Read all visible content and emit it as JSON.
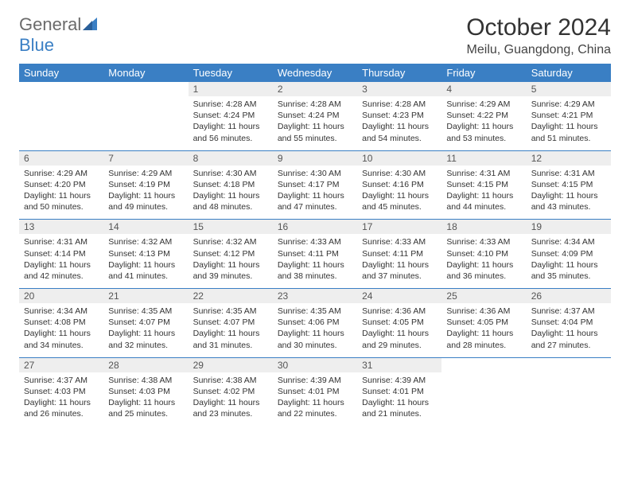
{
  "brand": {
    "part1": "General",
    "part2": "Blue"
  },
  "title": "October 2024",
  "location": "Meilu, Guangdong, China",
  "colors": {
    "header_bg": "#3a7fc4",
    "header_text": "#ffffff",
    "daynum_bg": "#eeeeee",
    "border": "#3a7fc4",
    "body_text": "#333333",
    "logo_gray": "#6b6b6b",
    "background": "#ffffff"
  },
  "typography": {
    "title_fontsize": 30,
    "location_fontsize": 16,
    "header_fontsize": 13,
    "daynum_fontsize": 12,
    "details_fontsize": 10.5
  },
  "layout": {
    "columns": 7,
    "rows": 5
  },
  "weekdays": [
    "Sunday",
    "Monday",
    "Tuesday",
    "Wednesday",
    "Thursday",
    "Friday",
    "Saturday"
  ],
  "weeks": [
    [
      {
        "day": "",
        "sunrise": "",
        "sunset": "",
        "daylight": ""
      },
      {
        "day": "",
        "sunrise": "",
        "sunset": "",
        "daylight": ""
      },
      {
        "day": "1",
        "sunrise": "Sunrise: 4:28 AM",
        "sunset": "Sunset: 4:24 PM",
        "daylight": "Daylight: 11 hours and 56 minutes."
      },
      {
        "day": "2",
        "sunrise": "Sunrise: 4:28 AM",
        "sunset": "Sunset: 4:24 PM",
        "daylight": "Daylight: 11 hours and 55 minutes."
      },
      {
        "day": "3",
        "sunrise": "Sunrise: 4:28 AM",
        "sunset": "Sunset: 4:23 PM",
        "daylight": "Daylight: 11 hours and 54 minutes."
      },
      {
        "day": "4",
        "sunrise": "Sunrise: 4:29 AM",
        "sunset": "Sunset: 4:22 PM",
        "daylight": "Daylight: 11 hours and 53 minutes."
      },
      {
        "day": "5",
        "sunrise": "Sunrise: 4:29 AM",
        "sunset": "Sunset: 4:21 PM",
        "daylight": "Daylight: 11 hours and 51 minutes."
      }
    ],
    [
      {
        "day": "6",
        "sunrise": "Sunrise: 4:29 AM",
        "sunset": "Sunset: 4:20 PM",
        "daylight": "Daylight: 11 hours and 50 minutes."
      },
      {
        "day": "7",
        "sunrise": "Sunrise: 4:29 AM",
        "sunset": "Sunset: 4:19 PM",
        "daylight": "Daylight: 11 hours and 49 minutes."
      },
      {
        "day": "8",
        "sunrise": "Sunrise: 4:30 AM",
        "sunset": "Sunset: 4:18 PM",
        "daylight": "Daylight: 11 hours and 48 minutes."
      },
      {
        "day": "9",
        "sunrise": "Sunrise: 4:30 AM",
        "sunset": "Sunset: 4:17 PM",
        "daylight": "Daylight: 11 hours and 47 minutes."
      },
      {
        "day": "10",
        "sunrise": "Sunrise: 4:30 AM",
        "sunset": "Sunset: 4:16 PM",
        "daylight": "Daylight: 11 hours and 45 minutes."
      },
      {
        "day": "11",
        "sunrise": "Sunrise: 4:31 AM",
        "sunset": "Sunset: 4:15 PM",
        "daylight": "Daylight: 11 hours and 44 minutes."
      },
      {
        "day": "12",
        "sunrise": "Sunrise: 4:31 AM",
        "sunset": "Sunset: 4:15 PM",
        "daylight": "Daylight: 11 hours and 43 minutes."
      }
    ],
    [
      {
        "day": "13",
        "sunrise": "Sunrise: 4:31 AM",
        "sunset": "Sunset: 4:14 PM",
        "daylight": "Daylight: 11 hours and 42 minutes."
      },
      {
        "day": "14",
        "sunrise": "Sunrise: 4:32 AM",
        "sunset": "Sunset: 4:13 PM",
        "daylight": "Daylight: 11 hours and 41 minutes."
      },
      {
        "day": "15",
        "sunrise": "Sunrise: 4:32 AM",
        "sunset": "Sunset: 4:12 PM",
        "daylight": "Daylight: 11 hours and 39 minutes."
      },
      {
        "day": "16",
        "sunrise": "Sunrise: 4:33 AM",
        "sunset": "Sunset: 4:11 PM",
        "daylight": "Daylight: 11 hours and 38 minutes."
      },
      {
        "day": "17",
        "sunrise": "Sunrise: 4:33 AM",
        "sunset": "Sunset: 4:11 PM",
        "daylight": "Daylight: 11 hours and 37 minutes."
      },
      {
        "day": "18",
        "sunrise": "Sunrise: 4:33 AM",
        "sunset": "Sunset: 4:10 PM",
        "daylight": "Daylight: 11 hours and 36 minutes."
      },
      {
        "day": "19",
        "sunrise": "Sunrise: 4:34 AM",
        "sunset": "Sunset: 4:09 PM",
        "daylight": "Daylight: 11 hours and 35 minutes."
      }
    ],
    [
      {
        "day": "20",
        "sunrise": "Sunrise: 4:34 AM",
        "sunset": "Sunset: 4:08 PM",
        "daylight": "Daylight: 11 hours and 34 minutes."
      },
      {
        "day": "21",
        "sunrise": "Sunrise: 4:35 AM",
        "sunset": "Sunset: 4:07 PM",
        "daylight": "Daylight: 11 hours and 32 minutes."
      },
      {
        "day": "22",
        "sunrise": "Sunrise: 4:35 AM",
        "sunset": "Sunset: 4:07 PM",
        "daylight": "Daylight: 11 hours and 31 minutes."
      },
      {
        "day": "23",
        "sunrise": "Sunrise: 4:35 AM",
        "sunset": "Sunset: 4:06 PM",
        "daylight": "Daylight: 11 hours and 30 minutes."
      },
      {
        "day": "24",
        "sunrise": "Sunrise: 4:36 AM",
        "sunset": "Sunset: 4:05 PM",
        "daylight": "Daylight: 11 hours and 29 minutes."
      },
      {
        "day": "25",
        "sunrise": "Sunrise: 4:36 AM",
        "sunset": "Sunset: 4:05 PM",
        "daylight": "Daylight: 11 hours and 28 minutes."
      },
      {
        "day": "26",
        "sunrise": "Sunrise: 4:37 AM",
        "sunset": "Sunset: 4:04 PM",
        "daylight": "Daylight: 11 hours and 27 minutes."
      }
    ],
    [
      {
        "day": "27",
        "sunrise": "Sunrise: 4:37 AM",
        "sunset": "Sunset: 4:03 PM",
        "daylight": "Daylight: 11 hours and 26 minutes."
      },
      {
        "day": "28",
        "sunrise": "Sunrise: 4:38 AM",
        "sunset": "Sunset: 4:03 PM",
        "daylight": "Daylight: 11 hours and 25 minutes."
      },
      {
        "day": "29",
        "sunrise": "Sunrise: 4:38 AM",
        "sunset": "Sunset: 4:02 PM",
        "daylight": "Daylight: 11 hours and 23 minutes."
      },
      {
        "day": "30",
        "sunrise": "Sunrise: 4:39 AM",
        "sunset": "Sunset: 4:01 PM",
        "daylight": "Daylight: 11 hours and 22 minutes."
      },
      {
        "day": "31",
        "sunrise": "Sunrise: 4:39 AM",
        "sunset": "Sunset: 4:01 PM",
        "daylight": "Daylight: 11 hours and 21 minutes."
      },
      {
        "day": "",
        "sunrise": "",
        "sunset": "",
        "daylight": ""
      },
      {
        "day": "",
        "sunrise": "",
        "sunset": "",
        "daylight": ""
      }
    ]
  ]
}
